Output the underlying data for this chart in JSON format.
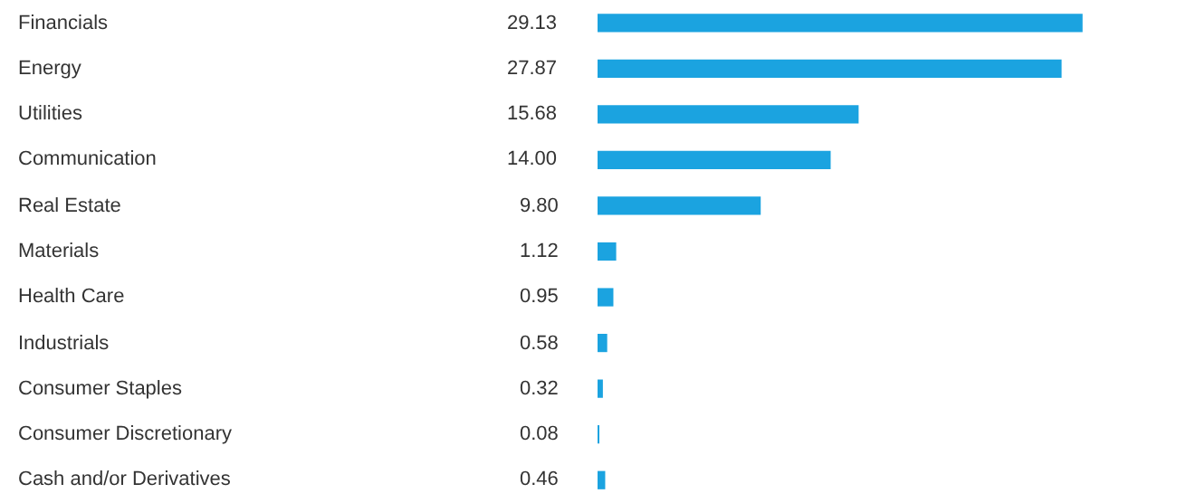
{
  "chart_data": {
    "type": "bar",
    "orientation": "horizontal",
    "categories": [
      "Financials",
      "Energy",
      "Utilities",
      "Communication",
      "Real Estate",
      "Materials",
      "Health Care",
      "Industrials",
      "Consumer Staples",
      "Consumer Discretionary",
      "Cash and/or Derivatives"
    ],
    "values": [
      29.13,
      27.87,
      15.68,
      14.0,
      9.8,
      1.12,
      0.95,
      0.58,
      0.32,
      0.08,
      0.46
    ],
    "value_labels": [
      "29.13",
      "27.87",
      "15.68",
      "14.00",
      "9.80",
      "1.12",
      "0.95",
      "0.58",
      "0.32",
      "0.08",
      "0.46"
    ],
    "xlim": [
      0,
      34.8
    ],
    "color": "#1ba3e0"
  }
}
